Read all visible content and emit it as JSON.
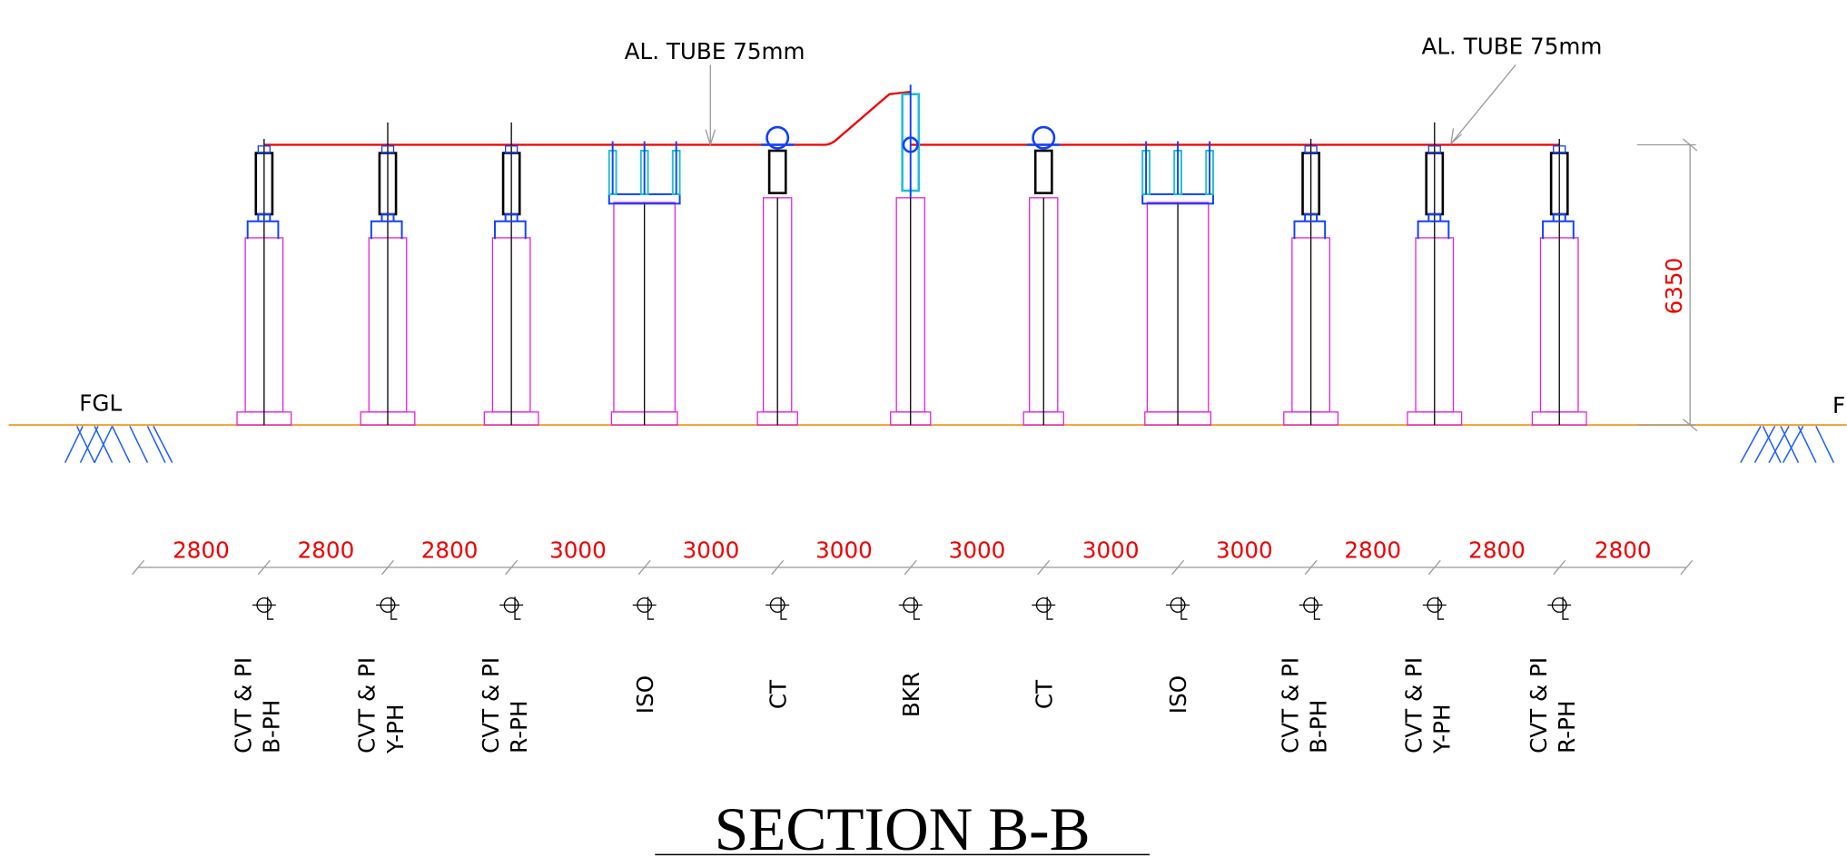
{
  "annotations": [
    "AL. TUBE 75mm",
    "AL. TUBE 75mm"
  ],
  "height_dimension": 6350,
  "ground_labels": [
    "FGL",
    "F"
  ],
  "spacings": [
    2800,
    2800,
    2800,
    3000,
    3000,
    3000,
    3000,
    3000,
    3000,
    2800,
    2800,
    2800
  ],
  "equipment": [
    [
      "CVT & PI",
      "B-PH"
    ],
    [
      "CVT & PI",
      "Y-PH"
    ],
    [
      "CVT & PI",
      "R-PH"
    ],
    [
      "ISO"
    ],
    [
      "CT"
    ],
    [
      "BKR"
    ],
    [
      "CT"
    ],
    [
      "ISO"
    ],
    [
      "CVT & PI",
      "B-PH"
    ],
    [
      "CVT & PI",
      "Y-PH"
    ],
    [
      "CVT & PI",
      "R-PH"
    ]
  ],
  "title": "SECTION B-B"
}
